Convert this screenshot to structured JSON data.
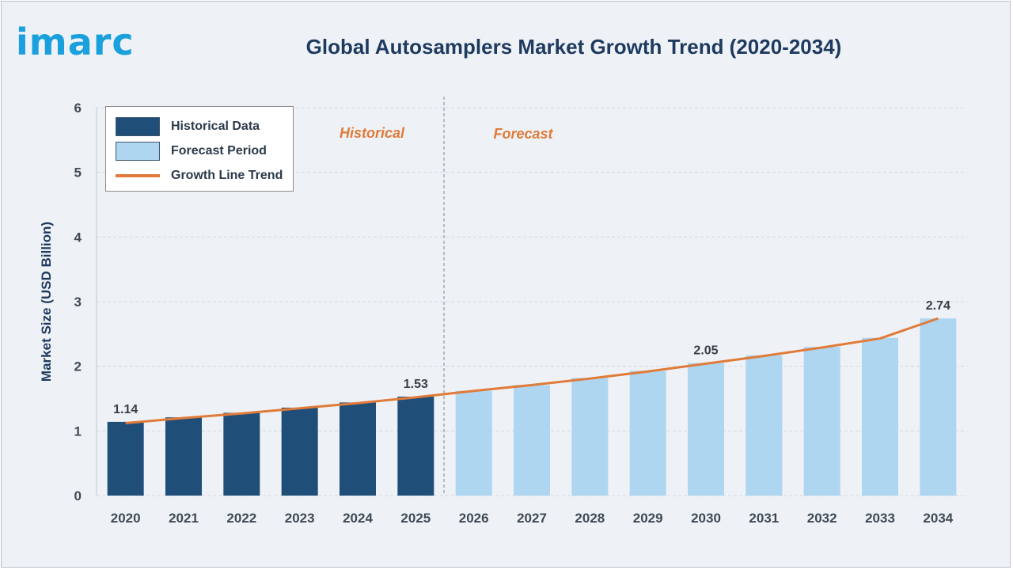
{
  "brand": {
    "logo_text": "imarc"
  },
  "chart_data": {
    "type": "bar",
    "title": "Global Autosamplers Market Growth Trend (2020-2034)",
    "xlabel": "",
    "ylabel": "Market Size (USD Billion)",
    "ylim": [
      0,
      6
    ],
    "yticks": [
      0,
      1,
      2,
      3,
      4,
      5,
      6
    ],
    "categories": [
      "2020",
      "2021",
      "2022",
      "2023",
      "2024",
      "2025",
      "2026",
      "2027",
      "2028",
      "2029",
      "2030",
      "2031",
      "2032",
      "2033",
      "2034"
    ],
    "values": [
      1.14,
      1.21,
      1.28,
      1.36,
      1.44,
      1.53,
      1.62,
      1.71,
      1.82,
      1.93,
      2.05,
      2.17,
      2.3,
      2.44,
      2.74
    ],
    "period": [
      "historical",
      "historical",
      "historical",
      "historical",
      "historical",
      "historical",
      "forecast",
      "forecast",
      "forecast",
      "forecast",
      "forecast",
      "forecast",
      "forecast",
      "forecast",
      "forecast"
    ],
    "data_labels": [
      {
        "category": "2020",
        "text": "1.14"
      },
      {
        "category": "2025",
        "text": "1.53"
      },
      {
        "category": "2030",
        "text": "2.05"
      },
      {
        "category": "2034",
        "text": "2.74"
      }
    ],
    "trend_line": [
      1.12,
      1.2,
      1.27,
      1.35,
      1.43,
      1.52,
      1.62,
      1.71,
      1.81,
      1.92,
      2.04,
      2.16,
      2.29,
      2.43,
      2.74
    ],
    "region_labels": {
      "historical": "Historical",
      "forecast": "Forecast"
    },
    "legend": {
      "position": "top-left",
      "items": [
        {
          "label": "Historical Data",
          "kind": "bar",
          "color": "#1f4e79"
        },
        {
          "label": "Forecast Period",
          "kind": "bar",
          "color": "#aed6f1"
        },
        {
          "label": "Growth Line Trend",
          "kind": "line",
          "color": "#e07b39"
        }
      ]
    },
    "colors": {
      "historical": "#1f4e79",
      "forecast": "#aed6f1",
      "trend": "#e07b39",
      "region_label": "#e07b39",
      "title": "#1e3a5f"
    },
    "grid": true
  }
}
